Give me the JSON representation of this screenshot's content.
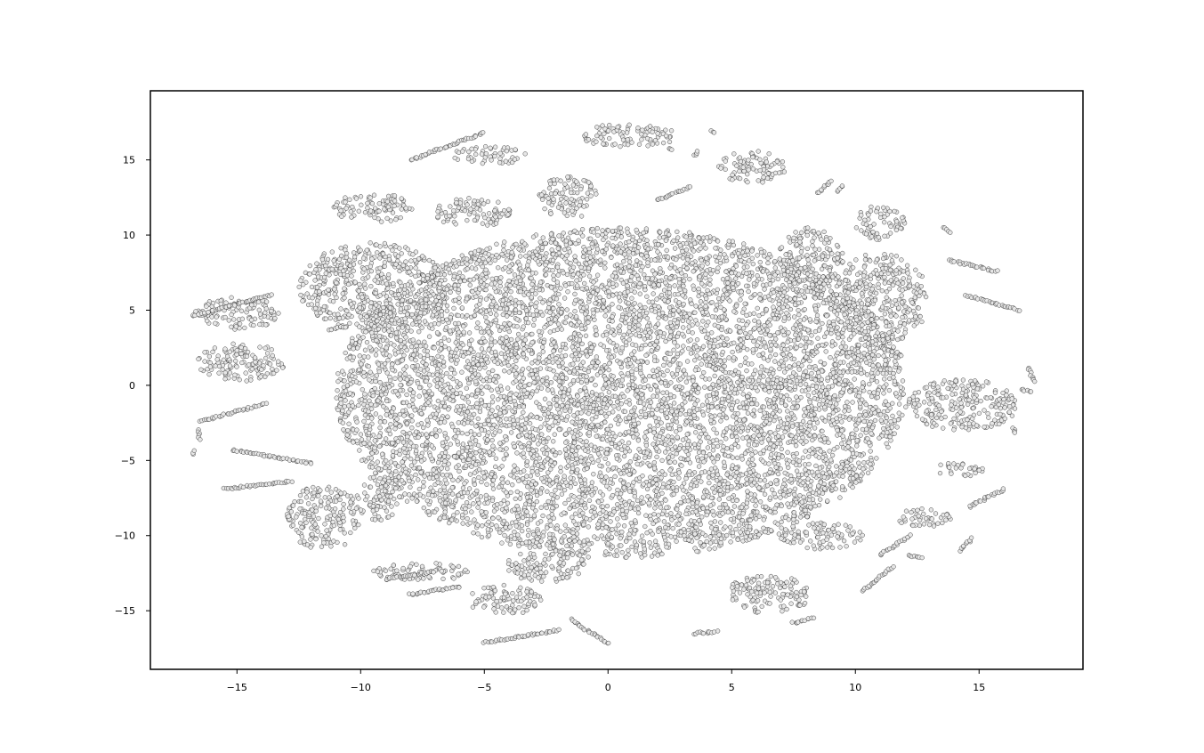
{
  "chart_data": {
    "type": "scatter",
    "title": "",
    "xlabel": "",
    "ylabel": "",
    "xlim": [
      -18.5,
      19.2
    ],
    "ylim": [
      -18.9,
      19.6
    ],
    "grid": false,
    "legend": "none",
    "marker": {
      "shape": "circle",
      "fill": "#e6e6e6",
      "edge": "#333333"
    },
    "xticks": [
      -15,
      -10,
      -5,
      0,
      5,
      10,
      15
    ],
    "xtick_labels": [
      "−15",
      "−10",
      "−5",
      "0",
      "5",
      "10",
      "15"
    ],
    "yticks": [
      -15,
      -10,
      -5,
      0,
      5,
      10,
      15
    ],
    "ytick_labels": [
      "−15",
      "−10",
      "−5",
      "0",
      "5",
      "10",
      "15"
    ],
    "clusters": [
      {
        "cx": 0.5,
        "cy": -0.5,
        "rx": 11.5,
        "ry": 11.0,
        "density": 1.0
      },
      {
        "cx": -9.5,
        "cy": 6.5,
        "rx": 3.0,
        "ry": 3.0,
        "density": 1.0
      },
      {
        "cx": -15.0,
        "cy": 4.8,
        "rx": 1.7,
        "ry": 1.1,
        "density": 1.0
      },
      {
        "cx": -14.8,
        "cy": 1.5,
        "rx": 1.8,
        "ry": 1.3,
        "density": 1.0
      },
      {
        "cx": -9.5,
        "cy": 11.8,
        "rx": 1.6,
        "ry": 1.0,
        "density": 1.0
      },
      {
        "cx": -11.5,
        "cy": -8.8,
        "rx": 1.5,
        "ry": 2.2,
        "density": 1.0
      },
      {
        "cx": -9.3,
        "cy": -7.5,
        "rx": 0.9,
        "ry": 1.5,
        "density": 1.0
      },
      {
        "cx": -4.8,
        "cy": 15.3,
        "rx": 1.5,
        "ry": 0.6,
        "density": 1.0
      },
      {
        "cx": -1.6,
        "cy": 12.5,
        "rx": 1.2,
        "ry": 1.4,
        "density": 1.0
      },
      {
        "cx": 0.8,
        "cy": 16.6,
        "rx": 2.0,
        "ry": 0.8,
        "density": 1.0
      },
      {
        "cx": 5.8,
        "cy": 14.5,
        "rx": 1.4,
        "ry": 1.1,
        "density": 1.0
      },
      {
        "cx": 11.0,
        "cy": 5.8,
        "rx": 2.0,
        "ry": 3.0,
        "density": 1.0
      },
      {
        "cx": 11.0,
        "cy": 10.8,
        "rx": 1.0,
        "ry": 1.2,
        "density": 1.0
      },
      {
        "cx": 14.3,
        "cy": -1.3,
        "rx": 2.3,
        "ry": 1.7,
        "density": 1.0
      },
      {
        "cx": 8.2,
        "cy": 8.5,
        "rx": 1.3,
        "ry": 2.0,
        "density": 1.0
      },
      {
        "cx": -4.2,
        "cy": -14.3,
        "rx": 1.5,
        "ry": 1.0,
        "density": 1.0
      },
      {
        "cx": 6.5,
        "cy": -13.9,
        "rx": 1.7,
        "ry": 1.3,
        "density": 1.0
      },
      {
        "cx": 8.6,
        "cy": -10.0,
        "rx": 1.7,
        "ry": 0.9,
        "density": 1.0
      },
      {
        "cx": 12.8,
        "cy": -8.8,
        "rx": 1.2,
        "ry": 0.6,
        "density": 1.0
      },
      {
        "cx": 14.2,
        "cy": -5.6,
        "rx": 1.0,
        "ry": 0.5,
        "density": 1.0
      },
      {
        "cx": -7.5,
        "cy": -12.4,
        "rx": 2.0,
        "ry": 0.6,
        "density": 1.0
      },
      {
        "cx": -2.5,
        "cy": -12.0,
        "rx": 1.6,
        "ry": 1.1,
        "density": 1.0
      },
      {
        "cx": -5.5,
        "cy": 11.5,
        "rx": 1.6,
        "ry": 1.0,
        "density": 1.0
      }
    ],
    "strands": [
      [
        [
          -8.0,
          15.0
        ],
        [
          -5.0,
          16.8
        ]
      ],
      [
        [
          -16.8,
          4.6
        ],
        [
          -13.6,
          6.0
        ]
      ],
      [
        [
          -16.5,
          -2.4
        ],
        [
          -13.8,
          -1.2
        ]
      ],
      [
        [
          -15.2,
          -4.3
        ],
        [
          -12.0,
          -5.2
        ]
      ],
      [
        [
          -15.5,
          -6.9
        ],
        [
          -12.8,
          -6.4
        ]
      ],
      [
        [
          -9.0,
          -12.9
        ],
        [
          -7.0,
          -12.4
        ]
      ],
      [
        [
          -8.0,
          -13.9
        ],
        [
          -6.0,
          -13.4
        ]
      ],
      [
        [
          -5.0,
          -17.1
        ],
        [
          -2.0,
          -16.3
        ]
      ],
      [
        [
          -1.5,
          -15.6
        ],
        [
          0.0,
          -17.2
        ]
      ],
      [
        [
          3.5,
          -16.5
        ],
        [
          4.4,
          -16.4
        ]
      ],
      [
        [
          7.5,
          -15.8
        ],
        [
          8.3,
          -15.5
        ]
      ],
      [
        [
          10.3,
          -13.7
        ],
        [
          11.5,
          -12.1
        ]
      ],
      [
        [
          11.0,
          -11.3
        ],
        [
          12.2,
          -10.0
        ]
      ],
      [
        [
          14.2,
          -11.0
        ],
        [
          14.7,
          -10.2
        ]
      ],
      [
        [
          14.6,
          -8.1
        ],
        [
          16.0,
          -6.9
        ]
      ],
      [
        [
          13.8,
          8.3
        ],
        [
          15.7,
          7.6
        ]
      ],
      [
        [
          14.5,
          6.0
        ],
        [
          16.6,
          5.0
        ]
      ],
      [
        [
          13.5,
          10.5
        ],
        [
          13.8,
          10.2
        ]
      ],
      [
        [
          2.0,
          12.3
        ],
        [
          3.3,
          13.2
        ]
      ],
      [
        [
          17.0,
          1.2
        ],
        [
          17.2,
          0.2
        ]
      ],
      [
        [
          16.7,
          -0.3
        ],
        [
          17.1,
          -0.4
        ]
      ],
      [
        [
          16.4,
          -2.9
        ],
        [
          16.5,
          -3.2
        ]
      ],
      [
        [
          -16.8,
          -4.6
        ],
        [
          -16.7,
          -4.4
        ]
      ],
      [
        [
          -16.6,
          -3.0
        ],
        [
          -16.5,
          -3.6
        ]
      ],
      [
        [
          12.2,
          -11.3
        ],
        [
          12.7,
          -11.5
        ]
      ],
      [
        [
          -11.3,
          3.7
        ],
        [
          -10.6,
          3.9
        ]
      ],
      [
        [
          2.5,
          15.8
        ],
        [
          2.6,
          15.7
        ]
      ],
      [
        [
          4.2,
          16.9
        ],
        [
          4.3,
          16.8
        ]
      ],
      [
        [
          3.5,
          15.3
        ],
        [
          3.6,
          15.6
        ]
      ],
      [
        [
          8.5,
          12.8
        ],
        [
          9.0,
          13.6
        ]
      ],
      [
        [
          9.3,
          12.9
        ],
        [
          9.5,
          13.3
        ]
      ],
      [
        [
          11.0,
          2.6
        ],
        [
          11.9,
          2.0
        ]
      ]
    ]
  }
}
